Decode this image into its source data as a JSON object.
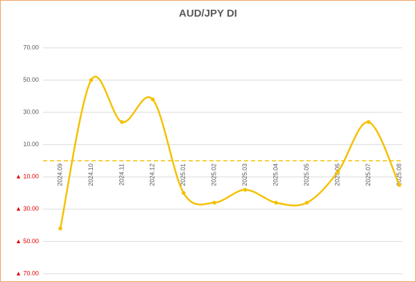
{
  "chart_data": {
    "type": "line",
    "title": "AUD/JPY  DI",
    "categories": [
      "2024.09",
      "2024.10",
      "2024.11",
      "2024.12",
      "2025.01",
      "2025.02",
      "2025.03",
      "2025.04",
      "2025.05",
      "2025.06",
      "2025.07",
      "2025.08"
    ],
    "series": [
      {
        "name": "AUD/JPY DI",
        "color": "#f5c000",
        "values": [
          -42,
          50,
          24,
          38,
          -20,
          -26,
          -18,
          -26,
          -26,
          -7,
          24,
          -15
        ]
      }
    ],
    "ylim": [
      -70,
      70
    ],
    "yticks": [
      {
        "value": -70,
        "label": "▲ 70.00"
      },
      {
        "value": -50,
        "label": "▲ 50.00"
      },
      {
        "value": -30,
        "label": "▲ 30.00"
      },
      {
        "value": -10,
        "label": "▲ 10.00"
      },
      {
        "value": 10,
        "label": "10.00"
      },
      {
        "value": 30,
        "label": "30.00"
      },
      {
        "value": 50,
        "label": "50.00"
      },
      {
        "value": 70,
        "label": "70.00"
      }
    ],
    "grid": true,
    "smooth": true,
    "negative_label_color": "#e00000"
  }
}
